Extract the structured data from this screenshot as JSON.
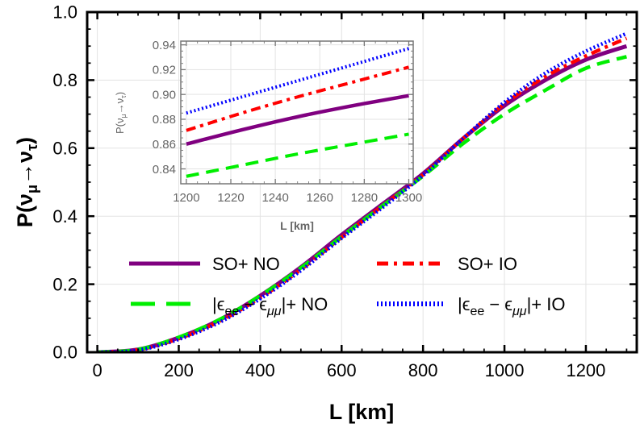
{
  "chart_data": [
    {
      "type": "line",
      "title": "",
      "xlabel": "L [km]",
      "ylabel": {
        "pre": "P(ν",
        "sub1": "μ",
        "mid": "→ν",
        "sub2": "τ",
        "post": ")"
      },
      "xlim": [
        -25,
        1325
      ],
      "ylim": [
        0.0,
        1.0
      ],
      "xticks": [
        "0",
        "200",
        "400",
        "600",
        "800",
        "1000",
        "1200"
      ],
      "yticks": [
        "0.0",
        "0.2",
        "0.4",
        "0.6",
        "0.8",
        "1.0"
      ],
      "grid": true,
      "legend_placement": "center-bottom",
      "x": [
        0,
        100,
        200,
        300,
        400,
        500,
        600,
        700,
        800,
        900,
        1000,
        1100,
        1200,
        1300
      ],
      "series": [
        {
          "name": "SO+ NO",
          "color": "#800080",
          "style": "solid",
          "values": [
            0,
            0.008,
            0.043,
            0.095,
            0.166,
            0.25,
            0.345,
            0.435,
            0.525,
            0.63,
            0.725,
            0.8,
            0.86,
            0.9
          ]
        },
        {
          "name": "SO+ IO",
          "color": "#ff0000",
          "style": "dash-dot",
          "values": [
            0,
            0.007,
            0.04,
            0.091,
            0.16,
            0.243,
            0.338,
            0.43,
            0.522,
            0.63,
            0.73,
            0.81,
            0.871,
            0.923
          ]
        },
        {
          "name": {
            "pre": "|ϵ",
            "sub1": "ee",
            "mid": " − ϵ",
            "sub2": "μμ",
            "post": "|+ NO"
          },
          "color": "#00ee00",
          "style": "dashed",
          "values": [
            0,
            0.008,
            0.044,
            0.096,
            0.166,
            0.248,
            0.34,
            0.43,
            0.518,
            0.615,
            0.7,
            0.77,
            0.835,
            0.869
          ]
        },
        {
          "name": {
            "pre": "|ϵ",
            "sub1": "ee",
            "mid": " − ϵ",
            "sub2": "μμ",
            "post": "|+ IO"
          },
          "color": "#0000ff",
          "style": "dotted",
          "values": [
            0,
            0.006,
            0.038,
            0.088,
            0.157,
            0.24,
            0.335,
            0.425,
            0.52,
            0.63,
            0.735,
            0.82,
            0.885,
            0.937
          ]
        }
      ]
    },
    {
      "type": "line",
      "title": "",
      "xlabel": "L [km]",
      "ylabel": {
        "pre": "P(ν",
        "sub1": "μ",
        "mid": "→ν",
        "sub2": "τ",
        "post": ")"
      },
      "xlim": [
        1197.5,
        1302
      ],
      "ylim": [
        0.828,
        0.943
      ],
      "xticks": [
        "1200",
        "1220",
        "1240",
        "1260",
        "1280",
        "1300"
      ],
      "yticks": [
        "0.84",
        "0.86",
        "0.88",
        "0.90",
        "0.92",
        "0.94"
      ],
      "grid": true,
      "x": [
        1200,
        1225,
        1250,
        1275,
        1300
      ],
      "series": [
        {
          "color": "#800080",
          "style": "solid",
          "values": [
            0.86,
            0.8715,
            0.882,
            0.891,
            0.899
          ]
        },
        {
          "color": "#ff0000",
          "style": "dash-dot",
          "values": [
            0.871,
            0.885,
            0.898,
            0.91,
            0.922
          ]
        },
        {
          "color": "#0000ff",
          "style": "dotted",
          "values": [
            0.885,
            0.898,
            0.911,
            0.924,
            0.937
          ]
        },
        {
          "color": "#00ee00",
          "style": "dashed",
          "values": [
            0.834,
            0.843,
            0.852,
            0.86,
            0.868
          ]
        }
      ]
    }
  ]
}
